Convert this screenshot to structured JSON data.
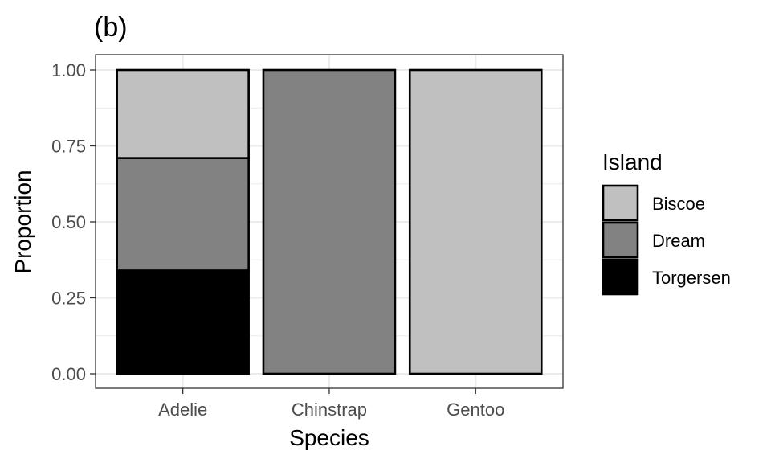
{
  "chart_data": {
    "type": "bar",
    "stacked": true,
    "title": "(b)",
    "xlabel": "Species",
    "ylabel": "Proportion",
    "categories": [
      "Adelie",
      "Chinstrap",
      "Gentoo"
    ],
    "y_ticks": [
      "0.00",
      "0.25",
      "0.50",
      "0.75",
      "1.00"
    ],
    "ylim": [
      0,
      1
    ],
    "grid": true,
    "legend": {
      "title": "Island",
      "position": "right"
    },
    "series": [
      {
        "name": "Biscoe",
        "color": "#c0c0c0",
        "values": [
          0.29,
          0.0,
          1.0
        ]
      },
      {
        "name": "Dream",
        "color": "#828282",
        "values": [
          0.37,
          1.0,
          0.0
        ]
      },
      {
        "name": "Torgersen",
        "color": "#000000",
        "values": [
          0.34,
          0.0,
          0.0
        ]
      }
    ]
  }
}
